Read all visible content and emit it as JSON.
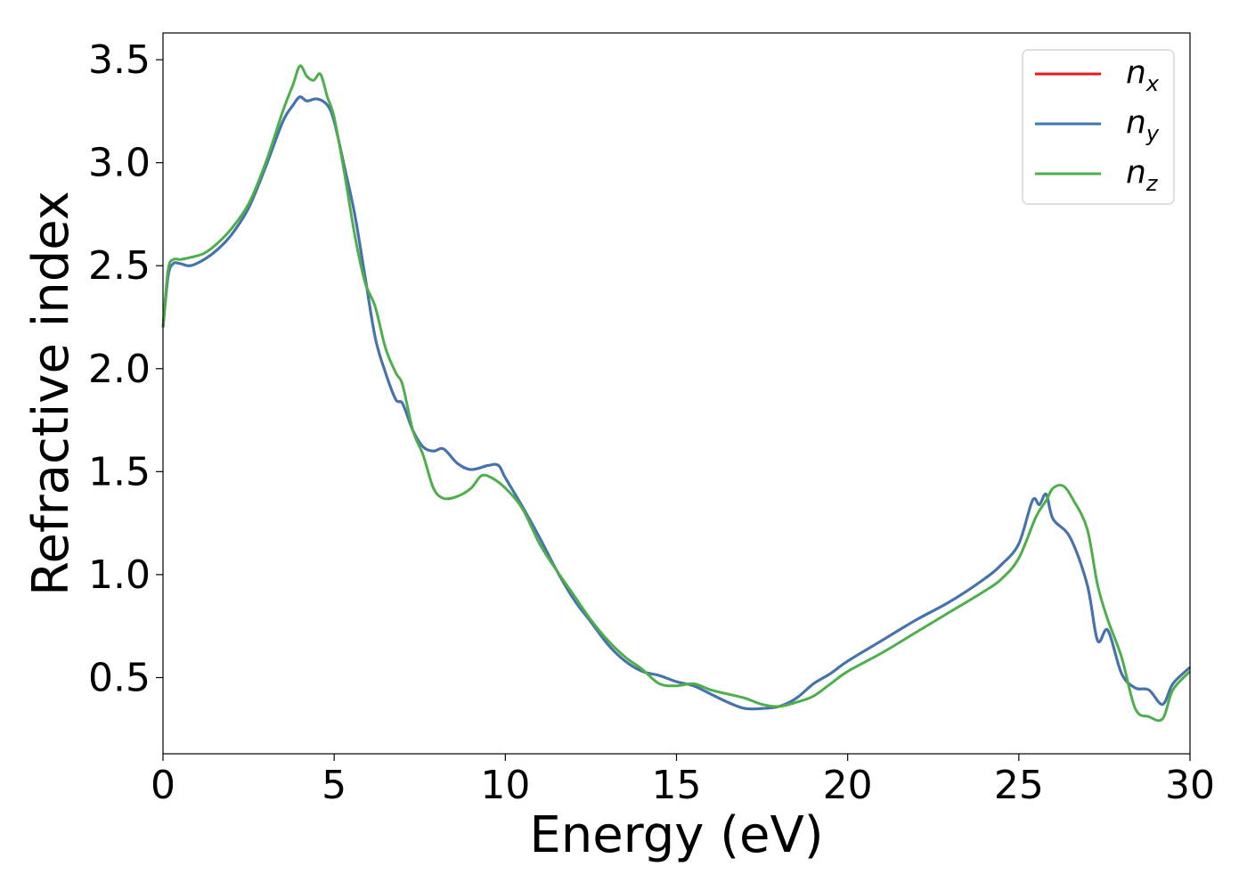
{
  "chart_data": {
    "type": "line",
    "xlabel": "Energy (eV)",
    "ylabel": "Refractive index",
    "xlim": [
      0,
      30
    ],
    "ylim": [
      0.13,
      3.63
    ],
    "xticks": [
      0,
      5,
      10,
      15,
      20,
      25,
      30
    ],
    "xtick_labels": [
      "0",
      "5",
      "10",
      "15",
      "20",
      "25",
      "30"
    ],
    "yticks": [
      0.5,
      1.0,
      1.5,
      2.0,
      2.5,
      3.0,
      3.5
    ],
    "ytick_labels": [
      "0.5",
      "1.0",
      "1.5",
      "2.0",
      "2.5",
      "3.0",
      "3.5"
    ],
    "grid": false,
    "legend": {
      "position": "top-right"
    },
    "series": [
      {
        "name": "n_x",
        "label_base": "n",
        "label_sub": "x",
        "color": "#e41a1c",
        "x": [
          0,
          0.15,
          0.3,
          0.5,
          0.8,
          1.2,
          1.6,
          2.0,
          2.5,
          3.0,
          3.5,
          3.8,
          4.0,
          4.2,
          4.5,
          4.8,
          5.0,
          5.3,
          5.6,
          5.9,
          6.2,
          6.5,
          6.8,
          7.0,
          7.3,
          7.6,
          7.9,
          8.2,
          8.6,
          9.0,
          9.5,
          9.8,
          10.0,
          10.5,
          11.0,
          11.5,
          12.0,
          12.5,
          13.0,
          13.5,
          14.0,
          14.5,
          15.0,
          15.5,
          16.0,
          16.5,
          17.0,
          17.5,
          18.0,
          18.5,
          19.0,
          19.5,
          20.0,
          21.0,
          22.0,
          23.0,
          24.0,
          24.5,
          25.0,
          25.4,
          25.6,
          25.8,
          26.0,
          26.5,
          27.0,
          27.3,
          27.6,
          28.0,
          28.4,
          28.8,
          29.2,
          29.5,
          30.0
        ],
        "y": [
          2.2,
          2.45,
          2.51,
          2.51,
          2.5,
          2.53,
          2.58,
          2.65,
          2.78,
          2.98,
          3.2,
          3.28,
          3.32,
          3.3,
          3.31,
          3.28,
          3.2,
          2.98,
          2.75,
          2.45,
          2.15,
          1.98,
          1.85,
          1.83,
          1.7,
          1.62,
          1.6,
          1.61,
          1.54,
          1.51,
          1.53,
          1.53,
          1.47,
          1.33,
          1.18,
          1.02,
          0.88,
          0.77,
          0.66,
          0.58,
          0.53,
          0.51,
          0.48,
          0.46,
          0.42,
          0.38,
          0.35,
          0.35,
          0.36,
          0.4,
          0.47,
          0.52,
          0.58,
          0.68,
          0.78,
          0.87,
          0.98,
          1.05,
          1.15,
          1.36,
          1.34,
          1.39,
          1.27,
          1.18,
          0.95,
          0.68,
          0.73,
          0.52,
          0.45,
          0.44,
          0.37,
          0.47,
          0.55
        ]
      },
      {
        "name": "n_y",
        "label_base": "n",
        "label_sub": "y",
        "color": "#3f76b2",
        "x": [
          0,
          0.15,
          0.3,
          0.5,
          0.8,
          1.2,
          1.6,
          2.0,
          2.5,
          3.0,
          3.5,
          3.8,
          4.0,
          4.2,
          4.5,
          4.8,
          5.0,
          5.3,
          5.6,
          5.9,
          6.2,
          6.5,
          6.8,
          7.0,
          7.3,
          7.6,
          7.9,
          8.2,
          8.6,
          9.0,
          9.5,
          9.8,
          10.0,
          10.5,
          11.0,
          11.5,
          12.0,
          12.5,
          13.0,
          13.5,
          14.0,
          14.5,
          15.0,
          15.5,
          16.0,
          16.5,
          17.0,
          17.5,
          18.0,
          18.5,
          19.0,
          19.5,
          20.0,
          21.0,
          22.0,
          23.0,
          24.0,
          24.5,
          25.0,
          25.4,
          25.6,
          25.8,
          26.0,
          26.5,
          27.0,
          27.3,
          27.6,
          28.0,
          28.4,
          28.8,
          29.2,
          29.5,
          30.0
        ],
        "y": [
          2.2,
          2.45,
          2.51,
          2.51,
          2.5,
          2.53,
          2.58,
          2.65,
          2.78,
          2.98,
          3.2,
          3.28,
          3.32,
          3.3,
          3.31,
          3.28,
          3.2,
          2.98,
          2.75,
          2.45,
          2.15,
          1.98,
          1.85,
          1.83,
          1.7,
          1.62,
          1.6,
          1.61,
          1.54,
          1.51,
          1.53,
          1.53,
          1.47,
          1.33,
          1.18,
          1.02,
          0.88,
          0.77,
          0.66,
          0.58,
          0.53,
          0.51,
          0.48,
          0.46,
          0.42,
          0.38,
          0.35,
          0.35,
          0.36,
          0.4,
          0.47,
          0.52,
          0.58,
          0.68,
          0.78,
          0.87,
          0.98,
          1.05,
          1.15,
          1.36,
          1.34,
          1.39,
          1.27,
          1.18,
          0.95,
          0.68,
          0.73,
          0.52,
          0.45,
          0.44,
          0.37,
          0.47,
          0.55
        ]
      },
      {
        "name": "n_z",
        "label_base": "n",
        "label_sub": "z",
        "color": "#4daf4a",
        "x": [
          0,
          0.15,
          0.3,
          0.5,
          0.8,
          1.2,
          1.6,
          2.0,
          2.5,
          3.0,
          3.5,
          3.8,
          4.0,
          4.2,
          4.4,
          4.6,
          4.8,
          5.0,
          5.3,
          5.6,
          5.9,
          6.2,
          6.5,
          6.8,
          7.0,
          7.3,
          7.6,
          7.9,
          8.2,
          8.6,
          9.0,
          9.3,
          9.6,
          10.0,
          10.5,
          11.0,
          11.5,
          12.0,
          12.5,
          13.0,
          13.5,
          14.0,
          14.5,
          15.0,
          15.5,
          16.0,
          16.5,
          17.0,
          17.5,
          18.0,
          18.5,
          19.0,
          19.5,
          20.0,
          21.0,
          22.0,
          23.0,
          24.0,
          24.5,
          25.0,
          25.5,
          25.8,
          26.0,
          26.3,
          26.6,
          27.0,
          27.3,
          27.6,
          28.0,
          28.4,
          28.8,
          29.2,
          29.5,
          30.0
        ],
        "y": [
          2.2,
          2.48,
          2.53,
          2.53,
          2.54,
          2.56,
          2.61,
          2.68,
          2.8,
          3.0,
          3.25,
          3.38,
          3.47,
          3.42,
          3.4,
          3.43,
          3.32,
          3.22,
          2.95,
          2.65,
          2.42,
          2.3,
          2.1,
          1.98,
          1.92,
          1.7,
          1.58,
          1.42,
          1.37,
          1.38,
          1.42,
          1.48,
          1.47,
          1.42,
          1.32,
          1.15,
          1.02,
          0.9,
          0.78,
          0.68,
          0.6,
          0.54,
          0.47,
          0.46,
          0.47,
          0.44,
          0.42,
          0.4,
          0.37,
          0.36,
          0.38,
          0.41,
          0.47,
          0.53,
          0.62,
          0.72,
          0.82,
          0.92,
          0.98,
          1.08,
          1.28,
          1.36,
          1.42,
          1.43,
          1.36,
          1.22,
          0.95,
          0.78,
          0.6,
          0.35,
          0.31,
          0.3,
          0.44,
          0.53
        ]
      }
    ]
  }
}
